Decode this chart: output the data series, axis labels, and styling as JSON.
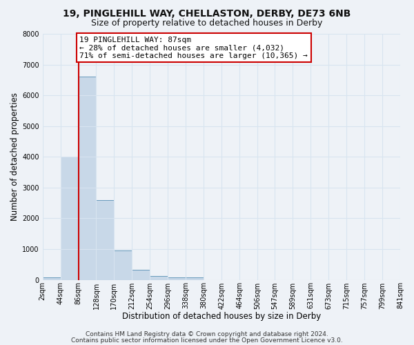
{
  "title": "19, PINGLEHILL WAY, CHELLASTON, DERBY, DE73 6NB",
  "subtitle": "Size of property relative to detached houses in Derby",
  "xlabel": "Distribution of detached houses by size in Derby",
  "ylabel": "Number of detached properties",
  "bar_edges": [
    2,
    44,
    86,
    128,
    170,
    212,
    254,
    296,
    338,
    380,
    422,
    464,
    506,
    547,
    589,
    631,
    673,
    715,
    757,
    799,
    841
  ],
  "bar_heights": [
    70,
    4000,
    6600,
    2600,
    950,
    320,
    130,
    70,
    70,
    0,
    0,
    0,
    0,
    0,
    0,
    0,
    0,
    0,
    0,
    0
  ],
  "bar_color": "#c8d8e8",
  "bar_edge_color": "#6699bb",
  "property_size": 87,
  "vline_color": "#cc0000",
  "annotation_text": "19 PINGLEHILL WAY: 87sqm\n← 28% of detached houses are smaller (4,032)\n71% of semi-detached houses are larger (10,365) →",
  "annotation_box_color": "#ffffff",
  "annotation_box_edge": "#cc0000",
  "ylim": [
    0,
    8000
  ],
  "tick_labels": [
    "2sqm",
    "44sqm",
    "86sqm",
    "128sqm",
    "170sqm",
    "212sqm",
    "254sqm",
    "296sqm",
    "338sqm",
    "380sqm",
    "422sqm",
    "464sqm",
    "506sqm",
    "547sqm",
    "589sqm",
    "631sqm",
    "673sqm",
    "715sqm",
    "757sqm",
    "799sqm",
    "841sqm"
  ],
  "footer_line1": "Contains HM Land Registry data © Crown copyright and database right 2024.",
  "footer_line2": "Contains public sector information licensed under the Open Government Licence v3.0.",
  "bg_color": "#eef2f7",
  "grid_color": "#d8e4f0",
  "title_fontsize": 10,
  "subtitle_fontsize": 9,
  "axis_label_fontsize": 8.5,
  "tick_fontsize": 7,
  "footer_fontsize": 6.5,
  "annotation_fontsize": 8
}
